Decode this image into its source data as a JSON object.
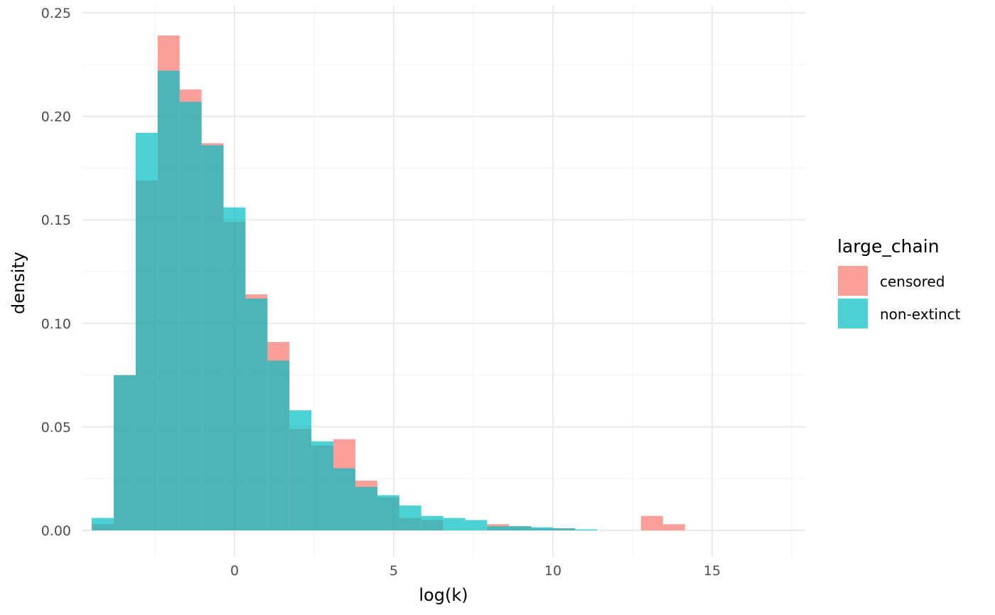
{
  "chart_data": {
    "type": "bar",
    "subtype": "overlaid-histogram",
    "xlabel": "log(k)",
    "ylabel": "density",
    "xlim": [
      -4.7,
      17.9
    ],
    "ylim": [
      -0.0125,
      0.2505
    ],
    "x_ticks": [
      0,
      5,
      10,
      15
    ],
    "x_tick_labels": [
      "0",
      "5",
      "10",
      "15"
    ],
    "y_ticks": [
      0,
      0.05,
      0.1,
      0.15,
      0.2,
      0.25
    ],
    "y_tick_labels": [
      "0.00",
      "0.05",
      "0.10",
      "0.15",
      "0.20",
      "0.25"
    ],
    "grid": true,
    "bin_width": 0.69,
    "bin_centers": [
      -4.14,
      -3.45,
      -2.76,
      -2.07,
      -1.38,
      -0.69,
      0,
      0.69,
      1.38,
      2.07,
      2.76,
      3.45,
      4.14,
      4.83,
      5.52,
      6.21,
      6.9,
      7.59,
      8.28,
      8.97,
      9.66,
      10.35,
      11.04,
      11.73,
      12.42,
      13.11,
      13.8
    ],
    "legend": {
      "title": "large_chain",
      "position": "right"
    },
    "series": [
      {
        "name": "censored",
        "color": "#F8766D",
        "opacity": 0.7,
        "values": [
          0.003,
          0.075,
          0.169,
          0.239,
          0.213,
          0.187,
          0.149,
          0.114,
          0.091,
          0.049,
          0.041,
          0.044,
          0.024,
          0.016,
          0.006,
          0.005,
          0.0,
          0.0,
          0.003,
          0.002,
          0.001,
          0.001,
          0.0,
          0.0,
          0.0,
          0.007,
          0.003
        ]
      },
      {
        "name": "non-extinct",
        "color": "#00BFC4",
        "opacity": 0.7,
        "values": [
          0.006,
          0.075,
          0.192,
          0.222,
          0.207,
          0.186,
          0.156,
          0.112,
          0.082,
          0.058,
          0.043,
          0.03,
          0.021,
          0.017,
          0.012,
          0.007,
          0.006,
          0.005,
          0.002,
          0.002,
          0.0015,
          0.001,
          0.0005,
          0.0,
          0.0,
          0.0,
          0.0
        ]
      }
    ]
  }
}
